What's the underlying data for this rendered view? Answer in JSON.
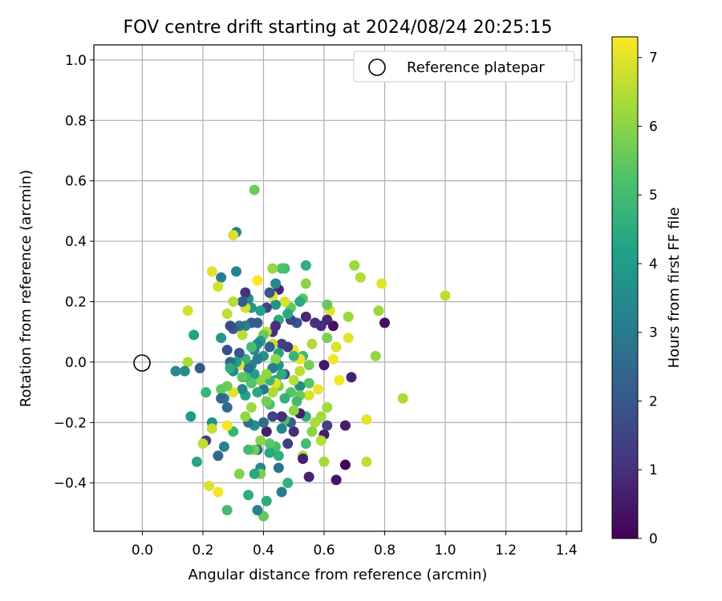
{
  "chart_data": {
    "type": "scatter",
    "title": "FOV centre drift starting at 2024/08/24 20:25:15",
    "xlabel": "Angular distance from reference (arcmin)",
    "ylabel": "Rotation from reference (arcmin)",
    "xlim": [
      -0.16,
      1.45
    ],
    "ylim": [
      -0.56,
      1.05
    ],
    "xticks": [
      "0.0",
      "0.2",
      "0.4",
      "0.6",
      "0.8",
      "1.0",
      "1.2",
      "1.4"
    ],
    "yticks": [
      "−0.4",
      "−0.2",
      "0.0",
      "0.2",
      "0.4",
      "0.6",
      "0.8",
      "1.0"
    ],
    "grid": true,
    "legend": {
      "position": "top-right",
      "entries": [
        "Reference platepar"
      ]
    },
    "reference_point": {
      "x": 0.0,
      "y": 0.0
    },
    "colorbar": {
      "label": "Hours from first FF file",
      "range": [
        0,
        7.3
      ],
      "ticks": [
        "0",
        "1",
        "2",
        "3",
        "4",
        "5",
        "6",
        "7"
      ],
      "colormap": "viridis"
    },
    "points": [
      [
        1.0,
        0.22,
        6.6
      ],
      [
        0.86,
        -0.12,
        6.4
      ],
      [
        0.79,
        0.26,
        7.0
      ],
      [
        0.8,
        0.13,
        0.3
      ],
      [
        0.78,
        0.17,
        6.2
      ],
      [
        0.77,
        0.02,
        6.1
      ],
      [
        0.72,
        0.28,
        6.5
      ],
      [
        0.7,
        0.32,
        6.2
      ],
      [
        0.74,
        -0.19,
        7.0
      ],
      [
        0.74,
        -0.33,
        6.6
      ],
      [
        0.69,
        -0.05,
        0.7
      ],
      [
        0.68,
        0.15,
        6.2
      ],
      [
        0.68,
        0.08,
        7.0
      ],
      [
        0.67,
        -0.21,
        0.6
      ],
      [
        0.67,
        -0.34,
        0.1
      ],
      [
        0.65,
        -0.06,
        7.2
      ],
      [
        0.64,
        0.05,
        6.9
      ],
      [
        0.63,
        0.12,
        0.3
      ],
      [
        0.63,
        0.01,
        7.2
      ],
      [
        0.64,
        -0.39,
        0.4
      ],
      [
        0.62,
        0.17,
        7.0
      ],
      [
        0.61,
        0.19,
        5.5
      ],
      [
        0.61,
        0.14,
        0.8
      ],
      [
        0.61,
        0.08,
        5.8
      ],
      [
        0.6,
        -0.24,
        0.6
      ],
      [
        0.61,
        -0.21,
        1.5
      ],
      [
        0.61,
        -0.15,
        6.3
      ],
      [
        0.6,
        -0.01,
        0.5
      ],
      [
        0.59,
        0.12,
        0.9
      ],
      [
        0.59,
        -0.18,
        6.3
      ],
      [
        0.59,
        -0.26,
        6.5
      ],
      [
        0.6,
        -0.33,
        6.3
      ],
      [
        0.58,
        -0.09,
        7.1
      ],
      [
        0.57,
        0.13,
        1.0
      ],
      [
        0.57,
        -0.2,
        6.4
      ],
      [
        0.56,
        -0.23,
        6.0
      ],
      [
        0.56,
        0.06,
        6.5
      ],
      [
        0.55,
        -0.01,
        5.7
      ],
      [
        0.55,
        -0.07,
        5.3
      ],
      [
        0.55,
        -0.11,
        6.9
      ],
      [
        0.55,
        -0.38,
        0.7
      ],
      [
        0.54,
        0.32,
        4.6
      ],
      [
        0.54,
        0.26,
        6.0
      ],
      [
        0.54,
        0.15,
        0.8
      ],
      [
        0.54,
        -0.18,
        4.6
      ],
      [
        0.54,
        -0.27,
        5.0
      ],
      [
        0.53,
        0.21,
        5.4
      ],
      [
        0.53,
        0.02,
        4.9
      ],
      [
        0.52,
        -0.08,
        3.5
      ],
      [
        0.52,
        0.01,
        7.1
      ],
      [
        0.52,
        -0.03,
        6.6
      ],
      [
        0.52,
        -0.17,
        0.6
      ],
      [
        0.52,
        0.2,
        4.4
      ],
      [
        0.53,
        -0.31,
        6.4
      ],
      [
        0.53,
        -0.32,
        0.6
      ],
      [
        0.52,
        -0.11,
        5.6
      ],
      [
        0.51,
        0.13,
        1.9
      ],
      [
        0.51,
        -0.13,
        5.0
      ],
      [
        0.5,
        0.04,
        7.2
      ],
      [
        0.5,
        0.02,
        4.8
      ],
      [
        0.5,
        -0.06,
        6.5
      ],
      [
        0.5,
        -0.16,
        6.0
      ],
      [
        0.5,
        -0.23,
        0.9
      ],
      [
        0.49,
        0.14,
        1.5
      ],
      [
        0.49,
        0.18,
        5.5
      ],
      [
        0.49,
        -0.1,
        5.3
      ],
      [
        0.49,
        -0.2,
        2.3
      ],
      [
        0.48,
        0.05,
        1.2
      ],
      [
        0.48,
        0.16,
        4.4
      ],
      [
        0.47,
        0.2,
        6.9
      ],
      [
        0.47,
        0.31,
        5.0
      ],
      [
        0.47,
        -0.04,
        1.8
      ],
      [
        0.47,
        -0.12,
        4.7
      ],
      [
        0.47,
        -0.19,
        5.1
      ],
      [
        0.48,
        -0.27,
        1.3
      ],
      [
        0.48,
        -0.4,
        4.7
      ],
      [
        0.46,
        0.31,
        5.2
      ],
      [
        0.46,
        0.06,
        1.4
      ],
      [
        0.46,
        -0.04,
        4.5
      ],
      [
        0.46,
        -0.18,
        0.9
      ],
      [
        0.46,
        -0.22,
        3.3
      ],
      [
        0.46,
        -0.43,
        3.1
      ],
      [
        0.45,
        0.24,
        0.8
      ],
      [
        0.45,
        0.14,
        4.5
      ],
      [
        0.45,
        0.03,
        4.3
      ],
      [
        0.45,
        -0.01,
        3.8
      ],
      [
        0.45,
        -0.08,
        5.9
      ],
      [
        0.45,
        -0.35,
        2.8
      ],
      [
        0.45,
        -0.31,
        4.6
      ],
      [
        0.44,
        0.26,
        3.4
      ],
      [
        0.44,
        0.19,
        3.8
      ],
      [
        0.44,
        0.12,
        1.0
      ],
      [
        0.44,
        0.01,
        6.1
      ],
      [
        0.44,
        -0.06,
        4.3
      ],
      [
        0.44,
        -0.07,
        7.0
      ],
      [
        0.44,
        -0.28,
        5.1
      ],
      [
        0.43,
        0.31,
        6.1
      ],
      [
        0.43,
        0.22,
        7.0
      ],
      [
        0.43,
        0.1,
        1.0
      ],
      [
        0.43,
        0.06,
        6.7
      ],
      [
        0.43,
        -0.02,
        3.1
      ],
      [
        0.43,
        -0.1,
        6.4
      ],
      [
        0.43,
        -0.18,
        1.5
      ],
      [
        0.42,
        -0.27,
        5.4
      ],
      [
        0.42,
        0.23,
        2.0
      ],
      [
        0.42,
        0.05,
        2.2
      ],
      [
        0.42,
        -0.06,
        4.8
      ],
      [
        0.42,
        -0.14,
        5.2
      ],
      [
        0.42,
        -0.3,
        4.4
      ],
      [
        0.41,
        0.18,
        1.4
      ],
      [
        0.41,
        0.1,
        6.6
      ],
      [
        0.41,
        -0.04,
        6.1
      ],
      [
        0.41,
        -0.13,
        5.7
      ],
      [
        0.41,
        -0.23,
        0.6
      ],
      [
        0.41,
        -0.46,
        4.5
      ],
      [
        0.4,
        0.09,
        5.6
      ],
      [
        0.4,
        0.02,
        3.7
      ],
      [
        0.4,
        -0.09,
        2.8
      ],
      [
        0.4,
        -0.2,
        2.6
      ],
      [
        0.4,
        -0.51,
        5.5
      ],
      [
        0.39,
        0.17,
        4.2
      ],
      [
        0.39,
        0.07,
        4.0
      ],
      [
        0.39,
        -0.06,
        6.1
      ],
      [
        0.39,
        -0.26,
        6.0
      ],
      [
        0.39,
        -0.35,
        3.4
      ],
      [
        0.39,
        -0.37,
        5.8
      ],
      [
        0.38,
        0.27,
        7.3
      ],
      [
        0.38,
        0.13,
        2.2
      ],
      [
        0.38,
        0.06,
        3.4
      ],
      [
        0.38,
        0.01,
        3.1
      ],
      [
        0.38,
        -0.1,
        4.4
      ],
      [
        0.38,
        -0.29,
        2.5
      ],
      [
        0.38,
        -0.49,
        3.2
      ],
      [
        0.37,
        0.57,
        5.6
      ],
      [
        0.37,
        0.04,
        3.5
      ],
      [
        0.37,
        -0.04,
        4.1
      ],
      [
        0.37,
        -0.21,
        3.6
      ],
      [
        0.37,
        -0.29,
        5.7
      ],
      [
        0.37,
        -0.37,
        4.4
      ],
      [
        0.36,
        0.18,
        3.9
      ],
      [
        0.36,
        0.13,
        2.1
      ],
      [
        0.36,
        0.05,
        5.1
      ],
      [
        0.36,
        -0.01,
        3.3
      ],
      [
        0.36,
        -0.07,
        5.3
      ],
      [
        0.36,
        -0.15,
        6.2
      ],
      [
        0.35,
        0.21,
        3.6
      ],
      [
        0.35,
        -0.02,
        2.7
      ],
      [
        0.35,
        -0.2,
        2.8
      ],
      [
        0.35,
        -0.29,
        5.0
      ],
      [
        0.35,
        -0.44,
        4.5
      ],
      [
        0.34,
        0.23,
        1.0
      ],
      [
        0.34,
        0.18,
        6.8
      ],
      [
        0.34,
        0.12,
        3.2
      ],
      [
        0.34,
        0.01,
        4.7
      ],
      [
        0.34,
        -0.05,
        5.0
      ],
      [
        0.34,
        -0.11,
        4.3
      ],
      [
        0.34,
        -0.18,
        6.1
      ],
      [
        0.33,
        0.2,
        2.1
      ],
      [
        0.33,
        0.09,
        6.5
      ],
      [
        0.33,
        -0.05,
        5.4
      ],
      [
        0.33,
        -0.09,
        3.3
      ],
      [
        0.32,
        0.12,
        2.8
      ],
      [
        0.32,
        0.03,
        2.0
      ],
      [
        0.32,
        -0.01,
        6.9
      ],
      [
        0.32,
        -0.37,
        5.9
      ],
      [
        0.31,
        0.43,
        3.2
      ],
      [
        0.31,
        0.3,
        3.3
      ],
      [
        0.31,
        0.0,
        4.0
      ],
      [
        0.3,
        0.42,
        6.9
      ],
      [
        0.3,
        0.2,
        6.5
      ],
      [
        0.3,
        0.11,
        2.0
      ],
      [
        0.3,
        -0.03,
        3.5
      ],
      [
        0.3,
        -0.1,
        7.0
      ],
      [
        0.3,
        -0.23,
        4.8
      ],
      [
        0.29,
        0.12,
        1.7
      ],
      [
        0.29,
        0.0,
        2.5
      ],
      [
        0.29,
        -0.02,
        4.5
      ],
      [
        0.28,
        0.16,
        6.6
      ],
      [
        0.28,
        0.04,
        1.8
      ],
      [
        0.28,
        -0.08,
        5.6
      ],
      [
        0.28,
        -0.15,
        2.5
      ],
      [
        0.28,
        -0.21,
        7.2
      ],
      [
        0.28,
        -0.49,
        5.0
      ],
      [
        0.27,
        -0.12,
        3.1
      ],
      [
        0.27,
        -0.28,
        3.3
      ],
      [
        0.26,
        0.28,
        3.1
      ],
      [
        0.26,
        0.08,
        3.9
      ],
      [
        0.26,
        -0.09,
        5.5
      ],
      [
        0.26,
        -0.12,
        2.4
      ],
      [
        0.25,
        -0.31,
        2.5
      ],
      [
        0.25,
        0.25,
        6.8
      ],
      [
        0.25,
        -0.43,
        7.2
      ],
      [
        0.23,
        0.3,
        7.0
      ],
      [
        0.23,
        -0.2,
        3.7
      ],
      [
        0.23,
        -0.22,
        6.7
      ],
      [
        0.22,
        -0.41,
        6.9
      ],
      [
        0.21,
        -0.1,
        4.8
      ],
      [
        0.21,
        -0.26,
        1.4
      ],
      [
        0.2,
        -0.27,
        6.6
      ],
      [
        0.19,
        -0.02,
        2.0
      ],
      [
        0.18,
        -0.33,
        4.3
      ],
      [
        0.17,
        0.09,
        4.2
      ],
      [
        0.16,
        -0.18,
        4.0
      ],
      [
        0.15,
        0.0,
        6.4
      ],
      [
        0.15,
        0.17,
        6.8
      ],
      [
        0.14,
        -0.03,
        3.6
      ],
      [
        0.11,
        -0.03,
        3.4
      ]
    ]
  }
}
